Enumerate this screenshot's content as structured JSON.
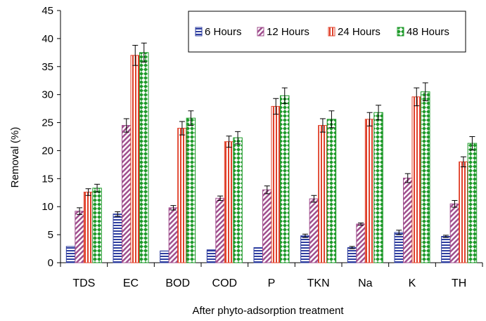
{
  "chart_data": {
    "type": "bar",
    "title": "",
    "xlabel": "After phyto-adsorption treatment",
    "ylabel": "Removal (%)",
    "ylim": [
      0,
      45
    ],
    "yticks": [
      0,
      5,
      10,
      15,
      20,
      25,
      30,
      35,
      40,
      45
    ],
    "grid": false,
    "legend_position": "top-right",
    "categories": [
      "TDS",
      "EC",
      "BOD",
      "COD",
      "P",
      "TKN",
      "Na",
      "K",
      "TH"
    ],
    "series": [
      {
        "name": "6 Hours",
        "pattern": "horizontal-stripes",
        "color": "#2f3fa0",
        "values": [
          2.9,
          8.7,
          2.1,
          2.3,
          2.7,
          4.8,
          2.7,
          5.4,
          4.7
        ],
        "errors": [
          0,
          0.4,
          0,
          0,
          0,
          0.3,
          0.2,
          0.4,
          0.2
        ]
      },
      {
        "name": "12 Hours",
        "pattern": "diagonal-stripes",
        "color": "#a04f8e",
        "values": [
          9.2,
          24.5,
          9.8,
          11.5,
          13.0,
          11.4,
          6.9,
          15.1,
          10.5
        ],
        "errors": [
          0.6,
          1.2,
          0.4,
          0.4,
          0.7,
          0.6,
          0.2,
          0.8,
          0.6
        ]
      },
      {
        "name": "24 Hours",
        "pattern": "vertical-stripes",
        "color": "#e0402a",
        "values": [
          12.6,
          37.0,
          24.0,
          21.6,
          27.9,
          24.5,
          25.6,
          29.6,
          18.0
        ],
        "errors": [
          0.6,
          1.8,
          1.2,
          1.0,
          1.4,
          1.2,
          1.2,
          1.6,
          0.9
        ]
      },
      {
        "name": "48 Hours",
        "pattern": "green-diamonds",
        "color": "#1e9a2a",
        "values": [
          13.3,
          37.5,
          25.8,
          22.3,
          29.8,
          25.6,
          26.8,
          30.5,
          21.3
        ],
        "errors": [
          0.7,
          1.7,
          1.3,
          1.1,
          1.4,
          1.5,
          1.3,
          1.6,
          1.2
        ]
      }
    ]
  }
}
